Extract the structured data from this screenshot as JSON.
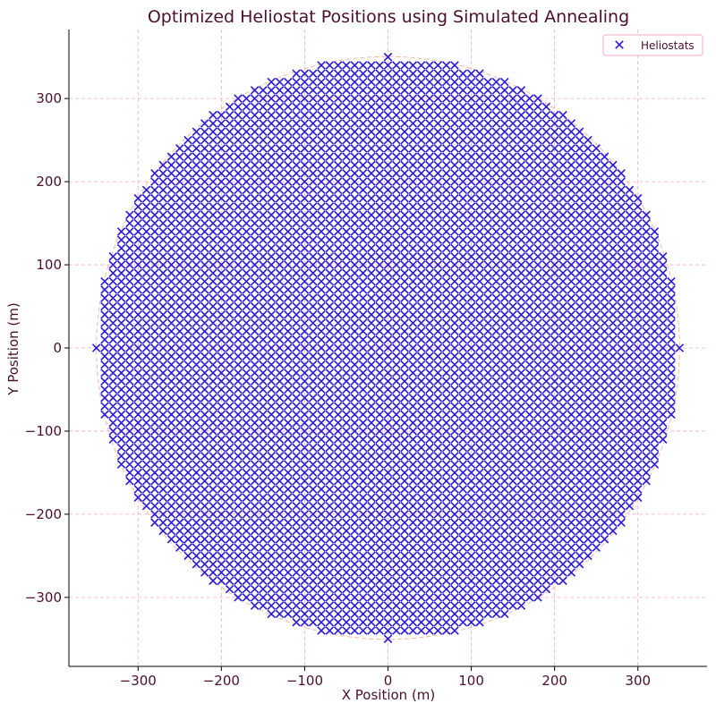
{
  "chart_data": {
    "type": "scatter",
    "title": "Optimized Heliostat Positions using Simulated Annealing",
    "xlabel": "X Position (m)",
    "ylabel": "Y Position (m)",
    "xlim": [
      -383,
      383
    ],
    "ylim": [
      -383,
      383
    ],
    "xticks": [
      -300,
      -200,
      -100,
      0,
      100,
      200,
      300
    ],
    "yticks": [
      -300,
      -200,
      -100,
      0,
      100,
      200,
      300
    ],
    "tick_labels_x": [
      "−300",
      "−200",
      "−100",
      "0",
      "100",
      "200",
      "300"
    ],
    "tick_labels_y": [
      "−300",
      "−200",
      "−100",
      "0",
      "100",
      "200",
      "300"
    ],
    "grid": true,
    "legend": {
      "position": "top-right",
      "entries": [
        "Heliostats"
      ]
    },
    "series": [
      {
        "name": "Heliostats",
        "marker": "x",
        "color": "#2b1bd6",
        "grid_spacing_m": 10,
        "field_radius_m": 350,
        "center": [
          0,
          0
        ]
      }
    ],
    "boundary_circle": {
      "radius_m": 350,
      "color": "#f4b7a4"
    }
  },
  "colors": {
    "text": "#4a0f2e",
    "grid": "#f5a9c8",
    "axis": "#000000",
    "marker": "#2b1bd6",
    "boundary": "#f4b7a4",
    "legend_border": "#f5a9c8"
  }
}
